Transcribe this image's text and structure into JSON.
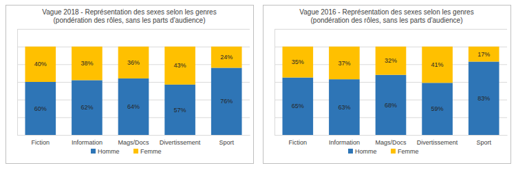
{
  "chart_data": [
    {
      "type": "bar",
      "stacked": true,
      "data_labels": true,
      "grid": true,
      "tick_labels": "x",
      "legend": "bottom",
      "title": "Vague 2018 - Représentation des sexes selon les genres",
      "subtitle": "(pondération des rôles, sans les parts d'audience)",
      "categories": [
        "Fiction",
        "Information",
        "Mags/Docs",
        "Divertissement",
        "Sport"
      ],
      "series": [
        {
          "name": "Homme",
          "color": "#2e75b6",
          "values": [
            60,
            62,
            64,
            57,
            76
          ],
          "value_labels": [
            "60%",
            "62%",
            "64%",
            "57%",
            "76%"
          ]
        },
        {
          "name": "Femme",
          "color": "#ffc000",
          "values": [
            40,
            38,
            36,
            43,
            24
          ],
          "value_labels": [
            "40%",
            "38%",
            "36%",
            "43%",
            "24%"
          ]
        }
      ],
      "ylim": [
        0,
        120
      ],
      "yticks": [
        0,
        20,
        40,
        60,
        80,
        100,
        120
      ]
    },
    {
      "type": "bar",
      "stacked": true,
      "data_labels": true,
      "grid": true,
      "tick_labels": "x",
      "legend": "bottom",
      "title": "Vague 2016 - Représentation des sexes selon les genres",
      "subtitle": "(pondération des rôles, sans les parts d'audience)",
      "categories": [
        "Fiction",
        "Information",
        "Mags/Docs",
        "Divertissement",
        "Sport"
      ],
      "series": [
        {
          "name": "Homme",
          "color": "#2e75b6",
          "values": [
            65,
            63,
            68,
            59,
            83
          ],
          "value_labels": [
            "65%",
            "63%",
            "68%",
            "59%",
            "83%"
          ]
        },
        {
          "name": "Femme",
          "color": "#ffc000",
          "values": [
            35,
            37,
            32,
            41,
            17
          ],
          "value_labels": [
            "35%",
            "37%",
            "32%",
            "41%",
            "17%"
          ]
        }
      ],
      "ylim": [
        0,
        120
      ],
      "yticks": [
        0,
        20,
        40,
        60,
        80,
        100,
        120
      ]
    }
  ]
}
